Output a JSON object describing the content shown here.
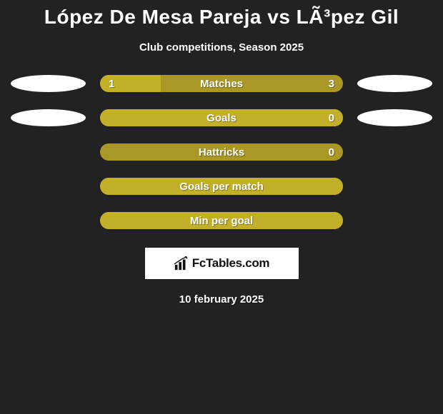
{
  "title": "López De Mesa Pareja vs LÃ³pez Gil",
  "subtitle": "Club competitions, Season 2025",
  "bar_colors": {
    "fill": "#c2b02b",
    "track": "#a99726",
    "text": "#ffffff"
  },
  "background_color": "#222222",
  "ellipse_color": "#ffffff",
  "rows": [
    {
      "label": "Matches",
      "left_value": "1",
      "right_value": "3",
      "fill_pct": 25,
      "show_left_ellipse": true,
      "show_right_ellipse": true
    },
    {
      "label": "Goals",
      "left_value": "",
      "right_value": "0",
      "fill_pct": 100,
      "show_left_ellipse": true,
      "show_right_ellipse": true
    },
    {
      "label": "Hattricks",
      "left_value": "",
      "right_value": "0",
      "fill_pct": 0,
      "show_left_ellipse": false,
      "show_right_ellipse": false
    },
    {
      "label": "Goals per match",
      "left_value": "",
      "right_value": "",
      "fill_pct": 100,
      "show_left_ellipse": false,
      "show_right_ellipse": false
    },
    {
      "label": "Min per goal",
      "left_value": "",
      "right_value": "",
      "fill_pct": 100,
      "show_left_ellipse": false,
      "show_right_ellipse": false
    }
  ],
  "logo_text": "FcTables.com",
  "date": "10 february 2025"
}
